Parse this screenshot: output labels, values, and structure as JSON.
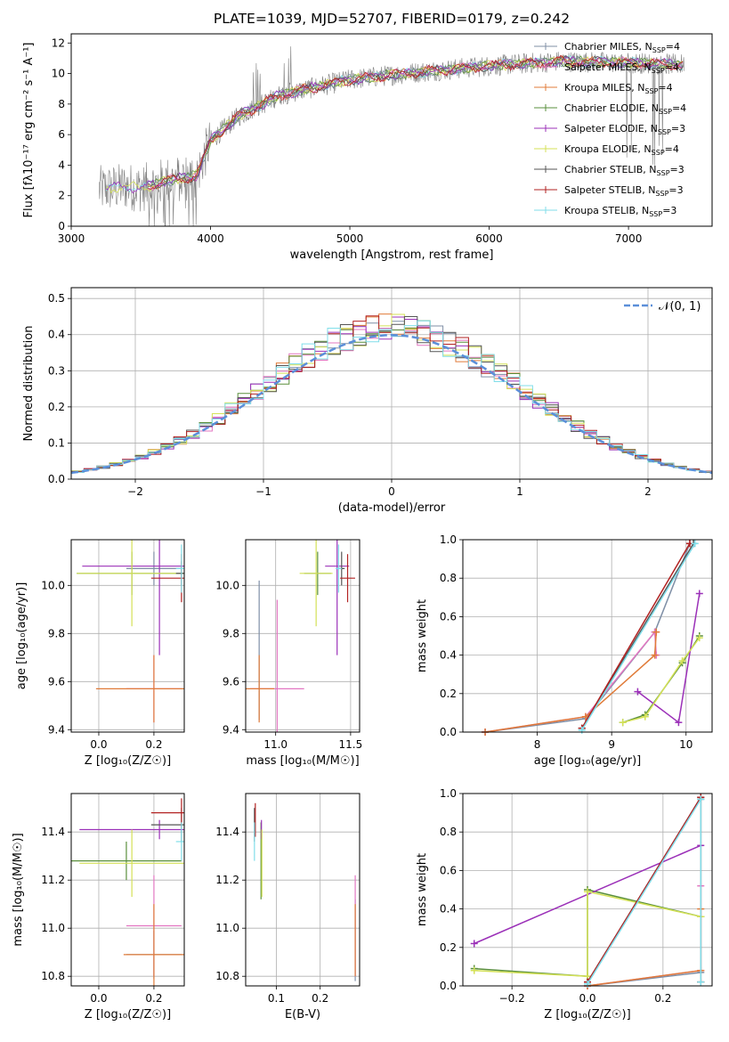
{
  "title": "PLATE=1039, MJD=52707, FIBERID=0179, z=0.242",
  "colors": {
    "chabrier_miles": "#7f8fa6",
    "salpeter_miles": "#e377c2",
    "kroupa_miles": "#e07b39",
    "chabrier_elodie": "#5a8f3c",
    "salpeter_elodie": "#9b30b8",
    "kroupa_elodie": "#d4e157",
    "chabrier_stelib": "#555555",
    "salpeter_stelib": "#b22222",
    "kroupa_stelib": "#80deea",
    "gaussian": "#5b8fd9",
    "grid": "#b0b0b0",
    "data": "#808080"
  },
  "legend_models": [
    {
      "base": "Chabrier MILES, N",
      "sub": "SSP",
      "tail": "=4",
      "color_key": "chabrier_miles"
    },
    {
      "base": "Salpeter MILES, N",
      "sub": "SSP",
      "tail": "=4",
      "color_key": "salpeter_miles"
    },
    {
      "base": "Kroupa MILES, N",
      "sub": "SSP",
      "tail": "=4",
      "color_key": "kroupa_miles"
    },
    {
      "base": "Chabrier ELODIE, N",
      "sub": "SSP",
      "tail": "=4",
      "color_key": "chabrier_elodie"
    },
    {
      "base": "Salpeter ELODIE, N",
      "sub": "SSP",
      "tail": "=3",
      "color_key": "salpeter_elodie"
    },
    {
      "base": "Kroupa ELODIE, N",
      "sub": "SSP",
      "tail": "=4",
      "color_key": "kroupa_elodie"
    },
    {
      "base": "Chabrier STELIB, N",
      "sub": "SSP",
      "tail": "=3",
      "color_key": "chabrier_stelib"
    },
    {
      "base": "Salpeter STELIB, N",
      "sub": "SSP",
      "tail": "=3",
      "color_key": "salpeter_stelib"
    },
    {
      "base": "Kroupa STELIB, N",
      "sub": "SSP",
      "tail": "=3",
      "color_key": "kroupa_stelib"
    }
  ],
  "chart_data": [
    {
      "id": "spectrum",
      "type": "line",
      "xlabel": "wavelength [Angstrom, rest frame]",
      "ylabel": "Flux [fλ10⁻¹⁷ erg cm⁻² s⁻¹ A⁻¹]",
      "xlim": [
        3000,
        7600
      ],
      "ylim": [
        0,
        12.6
      ],
      "xticks": [
        "3000",
        "4000",
        "5000",
        "6000",
        "7000"
      ],
      "yticks": [
        "0",
        "2",
        "4",
        "6",
        "8",
        "10",
        "12"
      ],
      "grid": false,
      "legend": "top-right",
      "data_range": [
        3200,
        7400
      ],
      "continuum_knots": {
        "x": [
          3200,
          3400,
          3500,
          3700,
          3900,
          4000,
          4200,
          4500,
          5000,
          5500,
          6000,
          6500,
          7000,
          7400
        ],
        "y": [
          2.4,
          2.6,
          2.5,
          3.0,
          3.3,
          5.6,
          7.2,
          8.6,
          9.6,
          10.1,
          10.5,
          10.8,
          10.7,
          10.6
        ]
      }
    },
    {
      "id": "residuals",
      "type": "step",
      "xlabel": "(data-model)/error",
      "ylabel": "Normed distribution",
      "xlim": [
        -2.5,
        2.5
      ],
      "ylim": [
        0,
        0.53
      ],
      "xticks": [
        "−2",
        "−1",
        "0",
        "1",
        "2"
      ],
      "yticks": [
        "0.0",
        "0.1",
        "0.2",
        "0.3",
        "0.4",
        "0.5"
      ],
      "grid": true,
      "legend": "top-right",
      "legend_label": "𝒩(0, 1)"
    },
    {
      "id": "age_vs_Z",
      "type": "errorbar",
      "xlabel": "Z [log₁₀(Z/Z☉)]",
      "ylabel": "age  [log₁₀(age/yr)]",
      "xlim": [
        -0.1,
        0.31
      ],
      "ylim": [
        9.39,
        10.19
      ],
      "xticks": [
        "0.0",
        "0.2"
      ],
      "yticks": [
        "9.4",
        "9.6",
        "9.8",
        "10.0"
      ],
      "grid": true,
      "points": [
        {
          "x": 0.2,
          "y": 10.07,
          "xerr": 0.1,
          "yerr": 0.07,
          "c": "chabrier_miles"
        },
        {
          "x": 0.2,
          "y": 9.57,
          "xerr": 0.1,
          "yerr": 0.14,
          "c": "salpeter_miles"
        },
        {
          "x": 0.2,
          "y": 9.57,
          "xerr": 0.21,
          "yerr": 0.14,
          "c": "kroupa_miles"
        },
        {
          "x": 0.12,
          "y": 10.05,
          "xerr": 0.2,
          "yerr": 0.09,
          "c": "chabrier_elodie"
        },
        {
          "x": 0.22,
          "y": 10.08,
          "xerr": 0.28,
          "yerr": 0.37,
          "c": "salpeter_elodie"
        },
        {
          "x": 0.12,
          "y": 10.05,
          "xerr": 0.2,
          "yerr": 0.22,
          "c": "kroupa_elodie"
        },
        {
          "x": 0.3,
          "y": 10.05,
          "xerr": 0.02,
          "yerr": 0.05,
          "c": "chabrier_stelib"
        },
        {
          "x": 0.3,
          "y": 10.03,
          "xerr": 0.11,
          "yerr": 0.1,
          "c": "salpeter_stelib"
        },
        {
          "x": 0.3,
          "y": 10.07,
          "xerr": 0.02,
          "yerr": 0.1,
          "c": "kroupa_stelib"
        }
      ]
    },
    {
      "id": "age_vs_mass",
      "type": "errorbar",
      "xlabel": "mass [log₁₀(M/M☉)]",
      "ylabel": "",
      "xlim": [
        10.8,
        11.56
      ],
      "ylim": [
        9.39,
        10.19
      ],
      "xticks": [
        "11.0",
        "11.5"
      ],
      "yticks": [
        "9.4",
        "9.6",
        "9.8",
        "10.0"
      ],
      "grid": true,
      "points": [
        {
          "x": 10.89,
          "y": 9.73,
          "xerr": 0.0,
          "yerr": 0.29,
          "c": "chabrier_miles"
        },
        {
          "x": 11.01,
          "y": 9.57,
          "xerr": 0.18,
          "yerr": 0.37,
          "c": "salpeter_miles"
        },
        {
          "x": 10.89,
          "y": 9.57,
          "xerr": 0.1,
          "yerr": 0.14,
          "c": "kroupa_miles"
        },
        {
          "x": 11.28,
          "y": 10.05,
          "xerr": 0.09,
          "yerr": 0.09,
          "c": "chabrier_elodie"
        },
        {
          "x": 11.41,
          "y": 10.08,
          "xerr": 0.08,
          "yerr": 0.37,
          "c": "salpeter_elodie"
        },
        {
          "x": 11.27,
          "y": 10.05,
          "xerr": 0.11,
          "yerr": 0.22,
          "c": "kroupa_elodie"
        },
        {
          "x": 11.44,
          "y": 10.07,
          "xerr": 0.02,
          "yerr": 0.07,
          "c": "chabrier_stelib"
        },
        {
          "x": 11.48,
          "y": 10.03,
          "xerr": 0.05,
          "yerr": 0.1,
          "c": "salpeter_stelib"
        },
        {
          "x": 11.42,
          "y": 10.07,
          "xerr": 0.02,
          "yerr": 0.1,
          "c": "kroupa_stelib"
        }
      ]
    },
    {
      "id": "massweight_vs_age",
      "type": "line",
      "xlabel": "age  [log₁₀(age/yr)]",
      "ylabel": "mass weight",
      "xlim": [
        7.0,
        10.35
      ],
      "ylim": [
        0,
        1.0
      ],
      "xticks": [
        "8",
        "9",
        "10"
      ],
      "yticks": [
        "0.0",
        "0.2",
        "0.4",
        "0.6",
        "0.8",
        "1.0"
      ],
      "grid": true,
      "series": [
        {
          "c": "chabrier_miles",
          "x": [
            7.3,
            8.65,
            9.58,
            10.05
          ],
          "y": [
            0.0,
            0.07,
            0.52,
            0.98
          ]
        },
        {
          "c": "salpeter_miles",
          "x": [
            7.3,
            8.65,
            9.58,
            9.6
          ],
          "y": [
            0.0,
            0.08,
            0.52,
            0.4
          ]
        },
        {
          "c": "kroupa_miles",
          "x": [
            7.3,
            8.65,
            9.58,
            9.6
          ],
          "y": [
            0.0,
            0.08,
            0.4,
            0.52
          ]
        },
        {
          "c": "chabrier_elodie",
          "x": [
            9.15,
            9.45,
            9.95,
            10.18
          ],
          "y": [
            0.05,
            0.09,
            0.36,
            0.5
          ]
        },
        {
          "c": "salpeter_elodie",
          "x": [
            9.35,
            9.9,
            10.18
          ],
          "y": [
            0.21,
            0.05,
            0.72
          ]
        },
        {
          "c": "kroupa_elodie",
          "x": [
            9.15,
            9.45,
            9.95,
            10.18
          ],
          "y": [
            0.05,
            0.08,
            0.37,
            0.49
          ]
        },
        {
          "c": "chabrier_stelib",
          "x": [
            8.6,
            10.1
          ],
          "y": [
            0.02,
            0.98
          ]
        },
        {
          "c": "salpeter_stelib",
          "x": [
            8.6,
            10.05
          ],
          "y": [
            0.02,
            0.98
          ]
        },
        {
          "c": "kroupa_stelib",
          "x": [
            8.6,
            10.12
          ],
          "y": [
            0.01,
            0.98
          ]
        }
      ]
    },
    {
      "id": "mass_vs_Z",
      "type": "errorbar",
      "xlabel": "Z [log₁₀(Z/Z☉)]",
      "ylabel": "mass [log₁₀(M/M☉)]",
      "xlim": [
        -0.1,
        0.31
      ],
      "ylim": [
        10.76,
        11.56
      ],
      "xticks": [
        "0.0",
        "0.2"
      ],
      "yticks": [
        "10.8",
        "11.0",
        "11.2",
        "11.4"
      ],
      "grid": true,
      "points": [
        {
          "x": 0.2,
          "y": 10.89,
          "xerr": 0.1,
          "yerr": 0.1,
          "c": "chabrier_miles"
        },
        {
          "x": 0.2,
          "y": 11.01,
          "xerr": 0.1,
          "yerr": 0.21,
          "c": "salpeter_miles"
        },
        {
          "x": 0.2,
          "y": 10.89,
          "xerr": 0.11,
          "yerr": 0.21,
          "c": "kroupa_miles"
        },
        {
          "x": 0.1,
          "y": 11.28,
          "xerr": 0.2,
          "yerr": 0.08,
          "c": "chabrier_elodie"
        },
        {
          "x": 0.22,
          "y": 11.41,
          "xerr": 0.29,
          "yerr": 0.04,
          "c": "salpeter_elodie"
        },
        {
          "x": 0.12,
          "y": 11.27,
          "xerr": 0.19,
          "yerr": 0.14,
          "c": "kroupa_elodie"
        },
        {
          "x": 0.3,
          "y": 11.43,
          "xerr": 0.11,
          "yerr": 0.07,
          "c": "chabrier_stelib"
        },
        {
          "x": 0.3,
          "y": 11.48,
          "xerr": 0.11,
          "yerr": 0.06,
          "c": "salpeter_stelib"
        },
        {
          "x": 0.3,
          "y": 11.36,
          "xerr": 0.02,
          "yerr": 0.08,
          "c": "kroupa_stelib"
        }
      ]
    },
    {
      "id": "mass_vs_ebv",
      "type": "errorbar",
      "xlabel": "E(B-V)",
      "ylabel": "",
      "xlim": [
        0.03,
        0.29
      ],
      "ylim": [
        10.76,
        11.56
      ],
      "xticks": [
        "0.1",
        "0.2"
      ],
      "yticks": [
        "10.8",
        "11.0",
        "11.2",
        "11.4"
      ],
      "grid": true,
      "points": [
        {
          "x": 0.28,
          "y": 10.95,
          "xerr": 0.0,
          "yerr": 0.17,
          "c": "chabrier_miles"
        },
        {
          "x": 0.28,
          "y": 11.01,
          "xerr": 0.0,
          "yerr": 0.21,
          "c": "salpeter_miles"
        },
        {
          "x": 0.28,
          "y": 10.95,
          "xerr": 0.0,
          "yerr": 0.15,
          "c": "kroupa_miles"
        },
        {
          "x": 0.065,
          "y": 11.28,
          "xerr": 0.0,
          "yerr": 0.16,
          "c": "chabrier_elodie"
        },
        {
          "x": 0.066,
          "y": 11.41,
          "xerr": 0.0,
          "yerr": 0.04,
          "c": "salpeter_elodie"
        },
        {
          "x": 0.067,
          "y": 11.27,
          "xerr": 0.0,
          "yerr": 0.14,
          "c": "kroupa_elodie"
        },
        {
          "x": 0.05,
          "y": 11.43,
          "xerr": 0.0,
          "yerr": 0.07,
          "c": "chabrier_stelib"
        },
        {
          "x": 0.052,
          "y": 11.45,
          "xerr": 0.0,
          "yerr": 0.07,
          "c": "salpeter_stelib"
        },
        {
          "x": 0.05,
          "y": 11.36,
          "xerr": 0.0,
          "yerr": 0.08,
          "c": "kroupa_stelib"
        }
      ]
    },
    {
      "id": "massweight_vs_Z",
      "type": "line",
      "xlabel": "Z [log₁₀(Z/Z☉)]",
      "ylabel": "mass weight",
      "xlim": [
        -0.33,
        0.33
      ],
      "ylim": [
        0,
        1.0
      ],
      "xticks": [
        "−0.2",
        "0.0",
        "0.2"
      ],
      "yticks": [
        "0.0",
        "0.2",
        "0.4",
        "0.6",
        "0.8",
        "1.0"
      ],
      "grid": true,
      "series": [
        {
          "c": "chabrier_miles",
          "x": [
            0.0,
            0.3,
            0.3
          ],
          "y": [
            0.0,
            0.07,
            0.97
          ]
        },
        {
          "c": "salpeter_miles",
          "x": [
            0.0,
            0.3,
            0.3
          ],
          "y": [
            0.0,
            0.08,
            0.52
          ]
        },
        {
          "c": "kroupa_miles",
          "x": [
            0.0,
            0.3,
            0.3
          ],
          "y": [
            0.0,
            0.08,
            0.4
          ]
        },
        {
          "c": "chabrier_elodie",
          "x": [
            -0.3,
            0.0,
            0.0,
            0.3
          ],
          "y": [
            0.09,
            0.05,
            0.5,
            0.36
          ]
        },
        {
          "c": "salpeter_elodie",
          "x": [
            -0.3,
            0.3
          ],
          "y": [
            0.22,
            0.73
          ]
        },
        {
          "c": "kroupa_elodie",
          "x": [
            -0.3,
            0.0,
            0.0,
            0.3
          ],
          "y": [
            0.08,
            0.05,
            0.49,
            0.36
          ]
        },
        {
          "c": "chabrier_stelib",
          "x": [
            0.0,
            0.3,
            0.3
          ],
          "y": [
            0.02,
            0.98,
            0.02
          ]
        },
        {
          "c": "salpeter_stelib",
          "x": [
            0.0,
            0.3,
            0.3
          ],
          "y": [
            0.02,
            0.98,
            0.02
          ]
        },
        {
          "c": "kroupa_stelib",
          "x": [
            0.0,
            0.3,
            0.3
          ],
          "y": [
            0.01,
            0.97,
            0.02
          ]
        }
      ]
    }
  ]
}
